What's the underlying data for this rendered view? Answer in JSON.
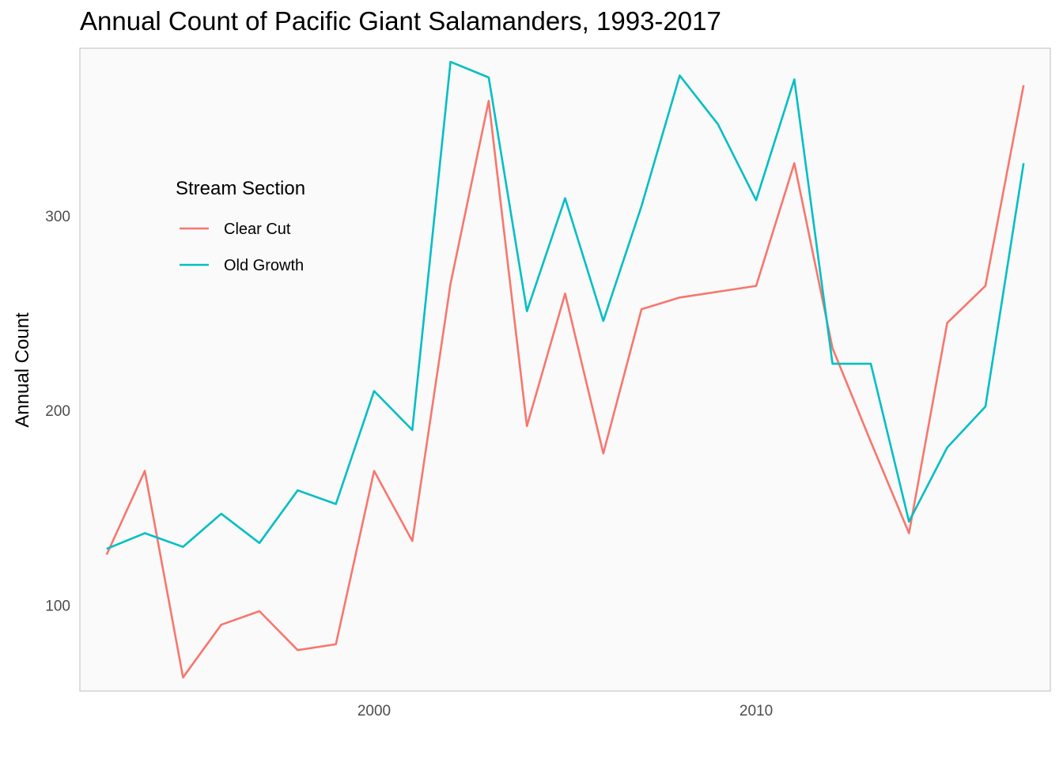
{
  "chart_data": {
    "type": "line",
    "title": "Annual Count of Pacific Giant Salamanders, 1993-2017",
    "xlabel": "",
    "ylabel": "Annual Count",
    "x": [
      1993,
      1994,
      1995,
      1996,
      1997,
      1998,
      1999,
      2000,
      2001,
      2002,
      2003,
      2004,
      2005,
      2006,
      2007,
      2008,
      2009,
      2010,
      2011,
      2012,
      2013,
      2014,
      2015,
      2016,
      2017
    ],
    "series": [
      {
        "name": "Clear Cut",
        "color": "#F8766D",
        "values": [
          126,
          169,
          63,
          90,
          97,
          77,
          80,
          169,
          133,
          265,
          359,
          192,
          260,
          178,
          252,
          258,
          261,
          264,
          327,
          232,
          184,
          137,
          245,
          264,
          367
        ]
      },
      {
        "name": "Old Growth",
        "color": "#00BFC4",
        "values": [
          129,
          137,
          130,
          147,
          132,
          159,
          152,
          210,
          190,
          379,
          371,
          251,
          309,
          246,
          305,
          372,
          347,
          308,
          370,
          224,
          224,
          143,
          181,
          202,
          327
        ]
      }
    ],
    "xticks": [
      2000,
      2010
    ],
    "yticks": [
      100,
      200,
      300
    ],
    "xlim": [
      1992.3,
      2017.7
    ],
    "ylim": [
      56,
      386
    ],
    "grid": false,
    "panel_background": "#FAFAFA",
    "legend": {
      "title": "Stream Section",
      "placement": "inside-top-left"
    }
  }
}
